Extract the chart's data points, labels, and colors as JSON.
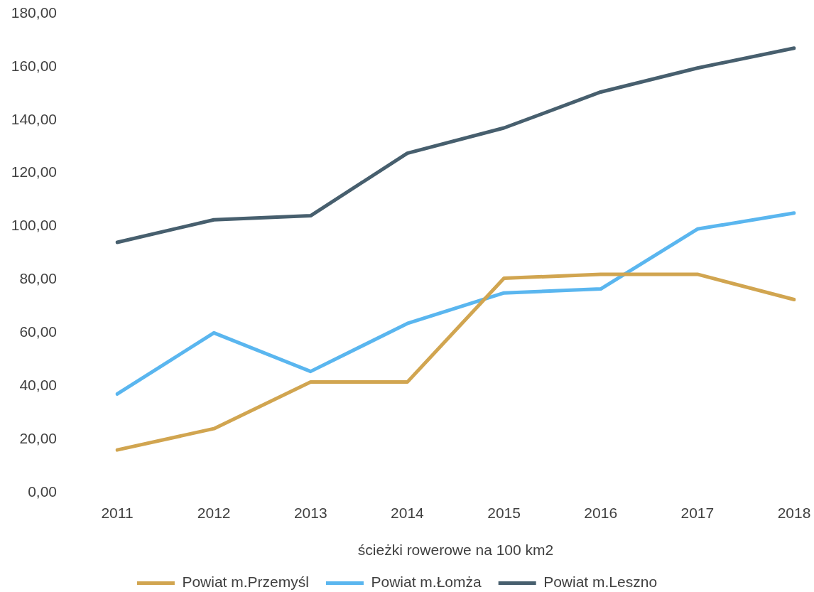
{
  "chart_data": {
    "type": "line",
    "xlabel": "ścieżki rowerowe na 100 km2",
    "categories": [
      "2011",
      "2012",
      "2013",
      "2014",
      "2015",
      "2016",
      "2017",
      "2018"
    ],
    "series": [
      {
        "name": "Powiat m.Przemyśl",
        "color": "#d1a550",
        "values": [
          16,
          24,
          41.5,
          41.5,
          80.5,
          82,
          82,
          72.5
        ]
      },
      {
        "name": "Powiat m.Łomża",
        "color": "#5ab6ef",
        "values": [
          37,
          60,
          45.5,
          63.5,
          75,
          76.5,
          99,
          105
        ]
      },
      {
        "name": "Powiat m.Leszno",
        "color": "#475f6e",
        "values": [
          94,
          102.5,
          104,
          127.5,
          137,
          150.5,
          159.5,
          167
        ]
      }
    ],
    "ylim": [
      0,
      180
    ],
    "yticks": [
      {
        "value": 0,
        "label": "0,00"
      },
      {
        "value": 20,
        "label": "20,00"
      },
      {
        "value": 40,
        "label": "40,00"
      },
      {
        "value": 60,
        "label": "60,00"
      },
      {
        "value": 80,
        "label": "80,00"
      },
      {
        "value": 100,
        "label": "100,00"
      },
      {
        "value": 120,
        "label": "120,00"
      },
      {
        "value": 140,
        "label": "140,00"
      },
      {
        "value": 160,
        "label": "160,00"
      },
      {
        "value": 180,
        "label": "180,00"
      }
    ],
    "grid": false,
    "legend": "bottom",
    "marker": "none",
    "line_style": "solid"
  }
}
